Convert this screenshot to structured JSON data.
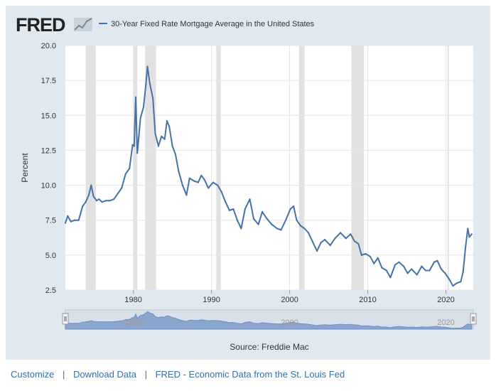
{
  "brand": "FRED",
  "chart_data": {
    "type": "line",
    "title": "",
    "xlabel": "",
    "ylabel": "Percent",
    "source": "Source: Freddie Mac",
    "ylim": [
      2.5,
      20.0
    ],
    "yticks": [
      "2.5",
      "5.0",
      "7.5",
      "10.0",
      "12.5",
      "15.0",
      "17.5",
      "20.0"
    ],
    "xlim": [
      1971.3,
      2023.5
    ],
    "xticks": [
      "1980",
      "1990",
      "2000",
      "2010",
      "2020"
    ],
    "navigator_labels": [
      "1980",
      "2000",
      "2020"
    ],
    "series": [
      {
        "name": "30-Year Fixed Rate Mortgage Average in the United States",
        "color": "#4572a7",
        "x": [
          1971.3,
          1971.6,
          1972.0,
          1972.5,
          1973.0,
          1973.5,
          1973.9,
          1974.3,
          1974.6,
          1974.9,
          1975.3,
          1975.6,
          1976.0,
          1976.5,
          1977.0,
          1977.5,
          1978.0,
          1978.5,
          1979.0,
          1979.5,
          1979.9,
          1980.1,
          1980.3,
          1980.5,
          1980.7,
          1980.9,
          1981.3,
          1981.6,
          1981.8,
          1982.1,
          1982.5,
          1982.8,
          1983.2,
          1983.6,
          1984.0,
          1984.3,
          1984.6,
          1985.0,
          1985.4,
          1985.8,
          1986.3,
          1986.8,
          1987.2,
          1987.8,
          1988.3,
          1988.7,
          1989.1,
          1989.6,
          1990.2,
          1990.8,
          1991.3,
          1991.8,
          1992.3,
          1992.8,
          1993.3,
          1993.8,
          1994.3,
          1994.9,
          1995.4,
          1996.0,
          1996.5,
          1997.1,
          1997.7,
          1998.4,
          1998.9,
          1999.5,
          2000.1,
          2000.5,
          2000.9,
          2001.4,
          2001.9,
          2002.4,
          2002.9,
          2003.5,
          2004.0,
          2004.5,
          2005.2,
          2005.8,
          2006.5,
          2007.2,
          2007.8,
          2008.3,
          2008.8,
          2009.2,
          2009.7,
          2010.3,
          2010.8,
          2011.3,
          2011.8,
          2012.4,
          2012.9,
          2013.5,
          2014.0,
          2014.6,
          2015.1,
          2015.6,
          2016.3,
          2016.9,
          2017.4,
          2017.9,
          2018.5,
          2018.9,
          2019.4,
          2019.9,
          2020.4,
          2020.9,
          2021.4,
          2021.9,
          2022.2,
          2022.5,
          2022.8,
          2023.0,
          2023.3
        ],
        "y": [
          7.3,
          7.8,
          7.4,
          7.5,
          7.5,
          8.5,
          8.8,
          9.3,
          10.0,
          9.2,
          8.9,
          9.0,
          8.8,
          8.9,
          8.9,
          9.0,
          9.4,
          9.8,
          10.8,
          11.2,
          12.9,
          12.8,
          16.3,
          12.3,
          13.5,
          14.8,
          15.6,
          17.2,
          18.5,
          17.3,
          16.2,
          13.7,
          12.8,
          13.5,
          13.3,
          14.6,
          14.2,
          12.8,
          12.2,
          11.0,
          10.0,
          9.3,
          10.5,
          10.3,
          10.2,
          10.7,
          10.4,
          9.8,
          10.2,
          10.0,
          9.5,
          8.8,
          8.2,
          8.3,
          7.5,
          6.9,
          8.3,
          9.0,
          7.6,
          7.2,
          8.1,
          7.6,
          7.2,
          6.9,
          6.8,
          7.5,
          8.3,
          8.5,
          7.5,
          7.1,
          6.9,
          6.6,
          6.0,
          5.3,
          5.9,
          6.1,
          5.7,
          6.2,
          6.6,
          6.2,
          6.5,
          6.0,
          5.8,
          5.0,
          5.1,
          4.9,
          4.4,
          4.8,
          4.1,
          3.9,
          3.4,
          4.3,
          4.5,
          4.2,
          3.7,
          4.0,
          3.6,
          4.2,
          3.9,
          3.9,
          4.5,
          4.6,
          4.0,
          3.7,
          3.3,
          2.8,
          3.0,
          3.1,
          3.8,
          5.5,
          6.9,
          6.3,
          6.5
        ]
      }
    ],
    "recessions": [
      [
        1973.9,
        1975.2
      ],
      [
        1980.0,
        1980.5
      ],
      [
        1981.5,
        1982.9
      ],
      [
        1990.6,
        1991.2
      ],
      [
        2001.2,
        2001.9
      ],
      [
        2007.9,
        2009.5
      ],
      [
        2020.2,
        2020.3
      ]
    ]
  },
  "footer": {
    "customize": "Customize",
    "download": "Download Data",
    "fred_link": "FRED - Economic Data from the St. Louis Fed",
    "separator": "|"
  }
}
